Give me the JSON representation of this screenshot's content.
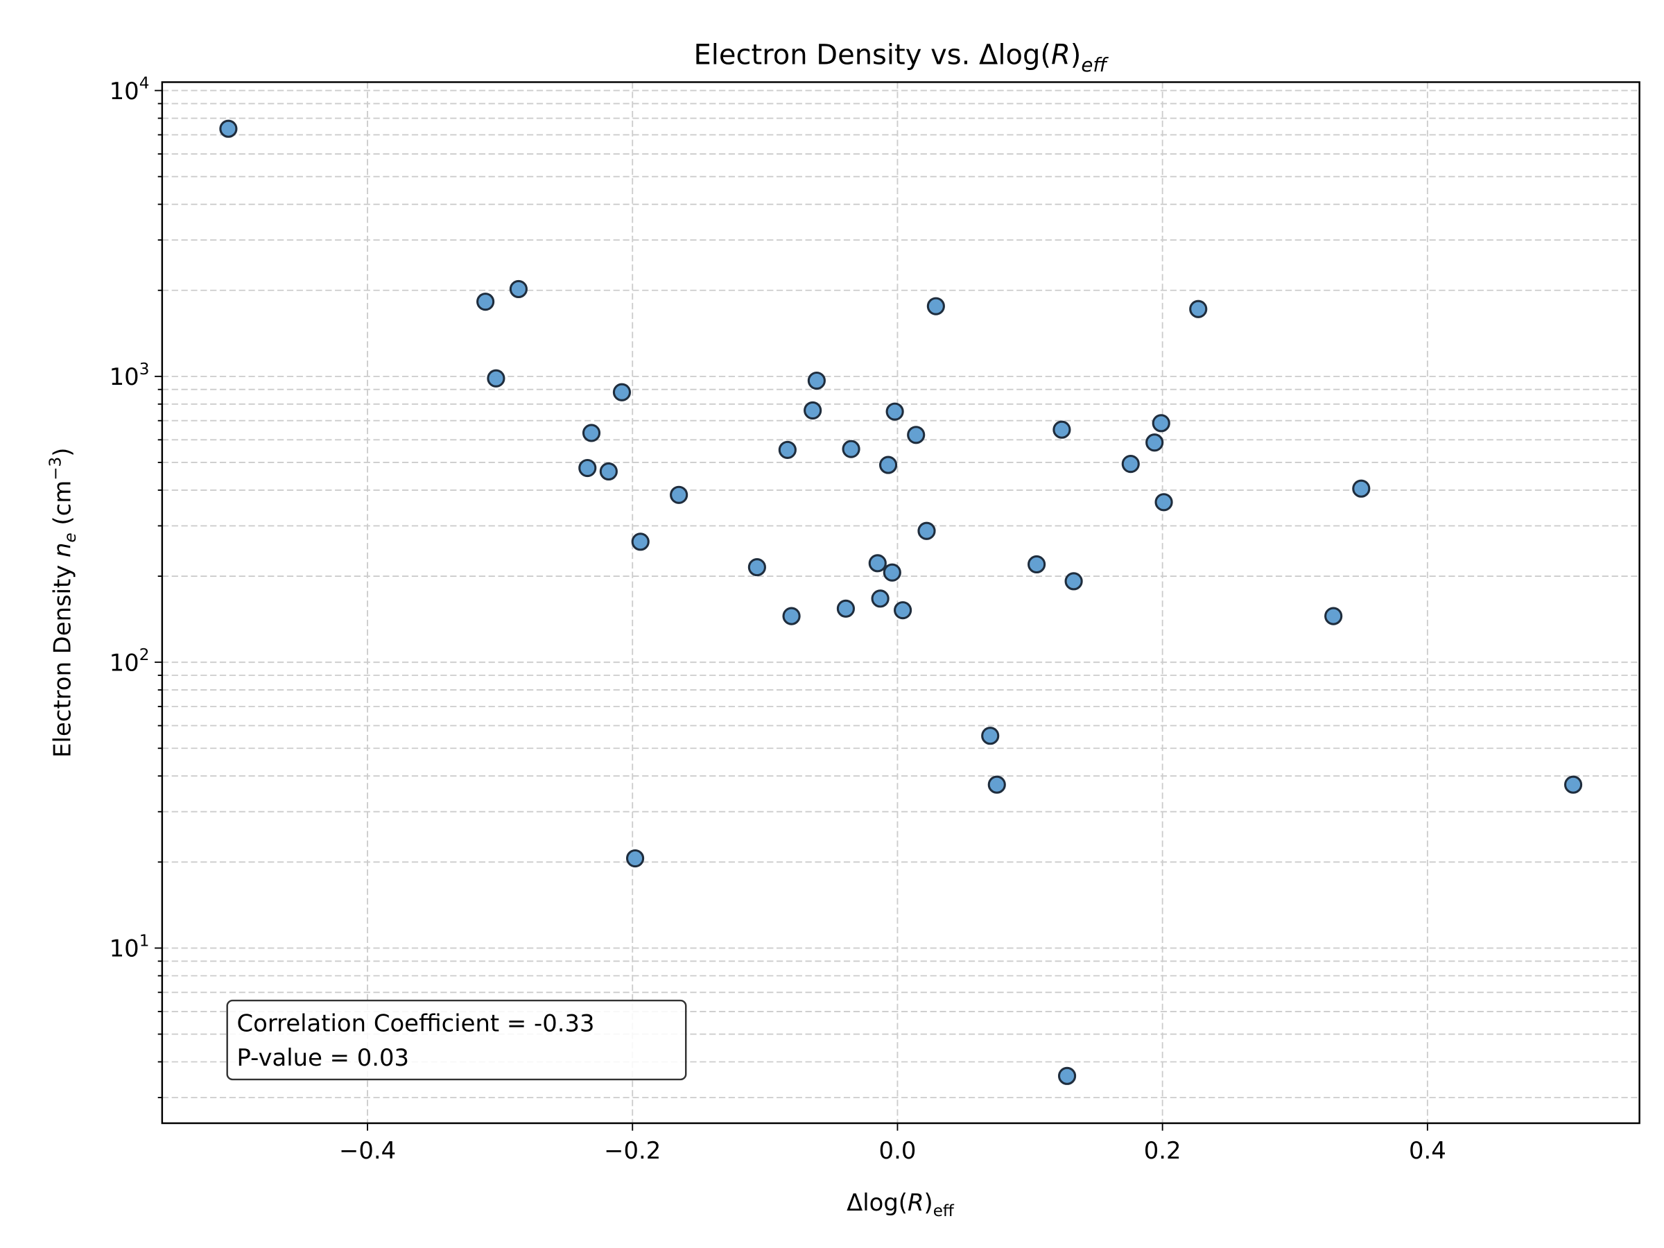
{
  "chart_data": {
    "type": "scatter",
    "title": "Electron Density vs. Δlog(R)_eff",
    "title_parts": {
      "main": "Electron Density vs. Δlog(",
      "italic": "R",
      "close": ")",
      "sub": "eff"
    },
    "xlabel": "Δlog(R)_eff",
    "xlabel_parts": {
      "main": "Δlog(",
      "italic": "R",
      "close": ")",
      "sub": "eff"
    },
    "ylabel": "Electron Density n_e (cm^-3)",
    "ylabel_parts": {
      "main": "Electron Density ",
      "italic": "n",
      "sub": "e",
      "unit_open": " (cm",
      "sup": "−3",
      "unit_close": ")"
    },
    "xlim": [
      -0.555,
      0.56
    ],
    "ylim": [
      2.44,
      10700
    ],
    "yscale": "log",
    "grid": true,
    "x_ticks": [
      {
        "v": -0.4,
        "label": "−0.4"
      },
      {
        "v": -0.2,
        "label": "−0.2"
      },
      {
        "v": 0.0,
        "label": "0.0"
      },
      {
        "v": 0.2,
        "label": "0.2"
      },
      {
        "v": 0.4,
        "label": "0.4"
      }
    ],
    "y_ticks": [
      {
        "v": 10,
        "base": "10",
        "exp": "1"
      },
      {
        "v": 100,
        "base": "10",
        "exp": "2"
      },
      {
        "v": 1000,
        "base": "10",
        "exp": "3"
      },
      {
        "v": 10000,
        "base": "10",
        "exp": "4"
      }
    ],
    "marker_color": "#5b9bd0",
    "marker_edge": "#1f2d3d",
    "x": [
      -0.505,
      -0.311,
      -0.286,
      -0.303,
      -0.208,
      -0.231,
      -0.234,
      -0.218,
      -0.165,
      -0.194,
      -0.198,
      -0.106,
      -0.08,
      -0.083,
      -0.061,
      -0.064,
      -0.035,
      -0.039,
      -0.015,
      -0.013,
      -0.004,
      -0.007,
      -0.002,
      0.004,
      0.014,
      0.022,
      0.029,
      0.07,
      0.075,
      0.105,
      0.124,
      0.133,
      0.128,
      0.176,
      0.194,
      0.199,
      0.201,
      0.227,
      0.329,
      0.35,
      0.51
    ],
    "y": [
      7350,
      1825,
      2020,
      984,
      880,
      634,
      478,
      465,
      385,
      264,
      20.6,
      215,
      145,
      553,
      966,
      760,
      557,
      154,
      222,
      167,
      206,
      490,
      753,
      152,
      624,
      288,
      1760,
      55.3,
      37.3,
      220,
      651,
      192,
      3.57,
      494,
      587,
      686,
      363,
      1720,
      145,
      405,
      37.3
    ],
    "annotation": {
      "line1": "Correlation Coefficient = -0.33",
      "line2": "P-value = 0.03"
    }
  }
}
